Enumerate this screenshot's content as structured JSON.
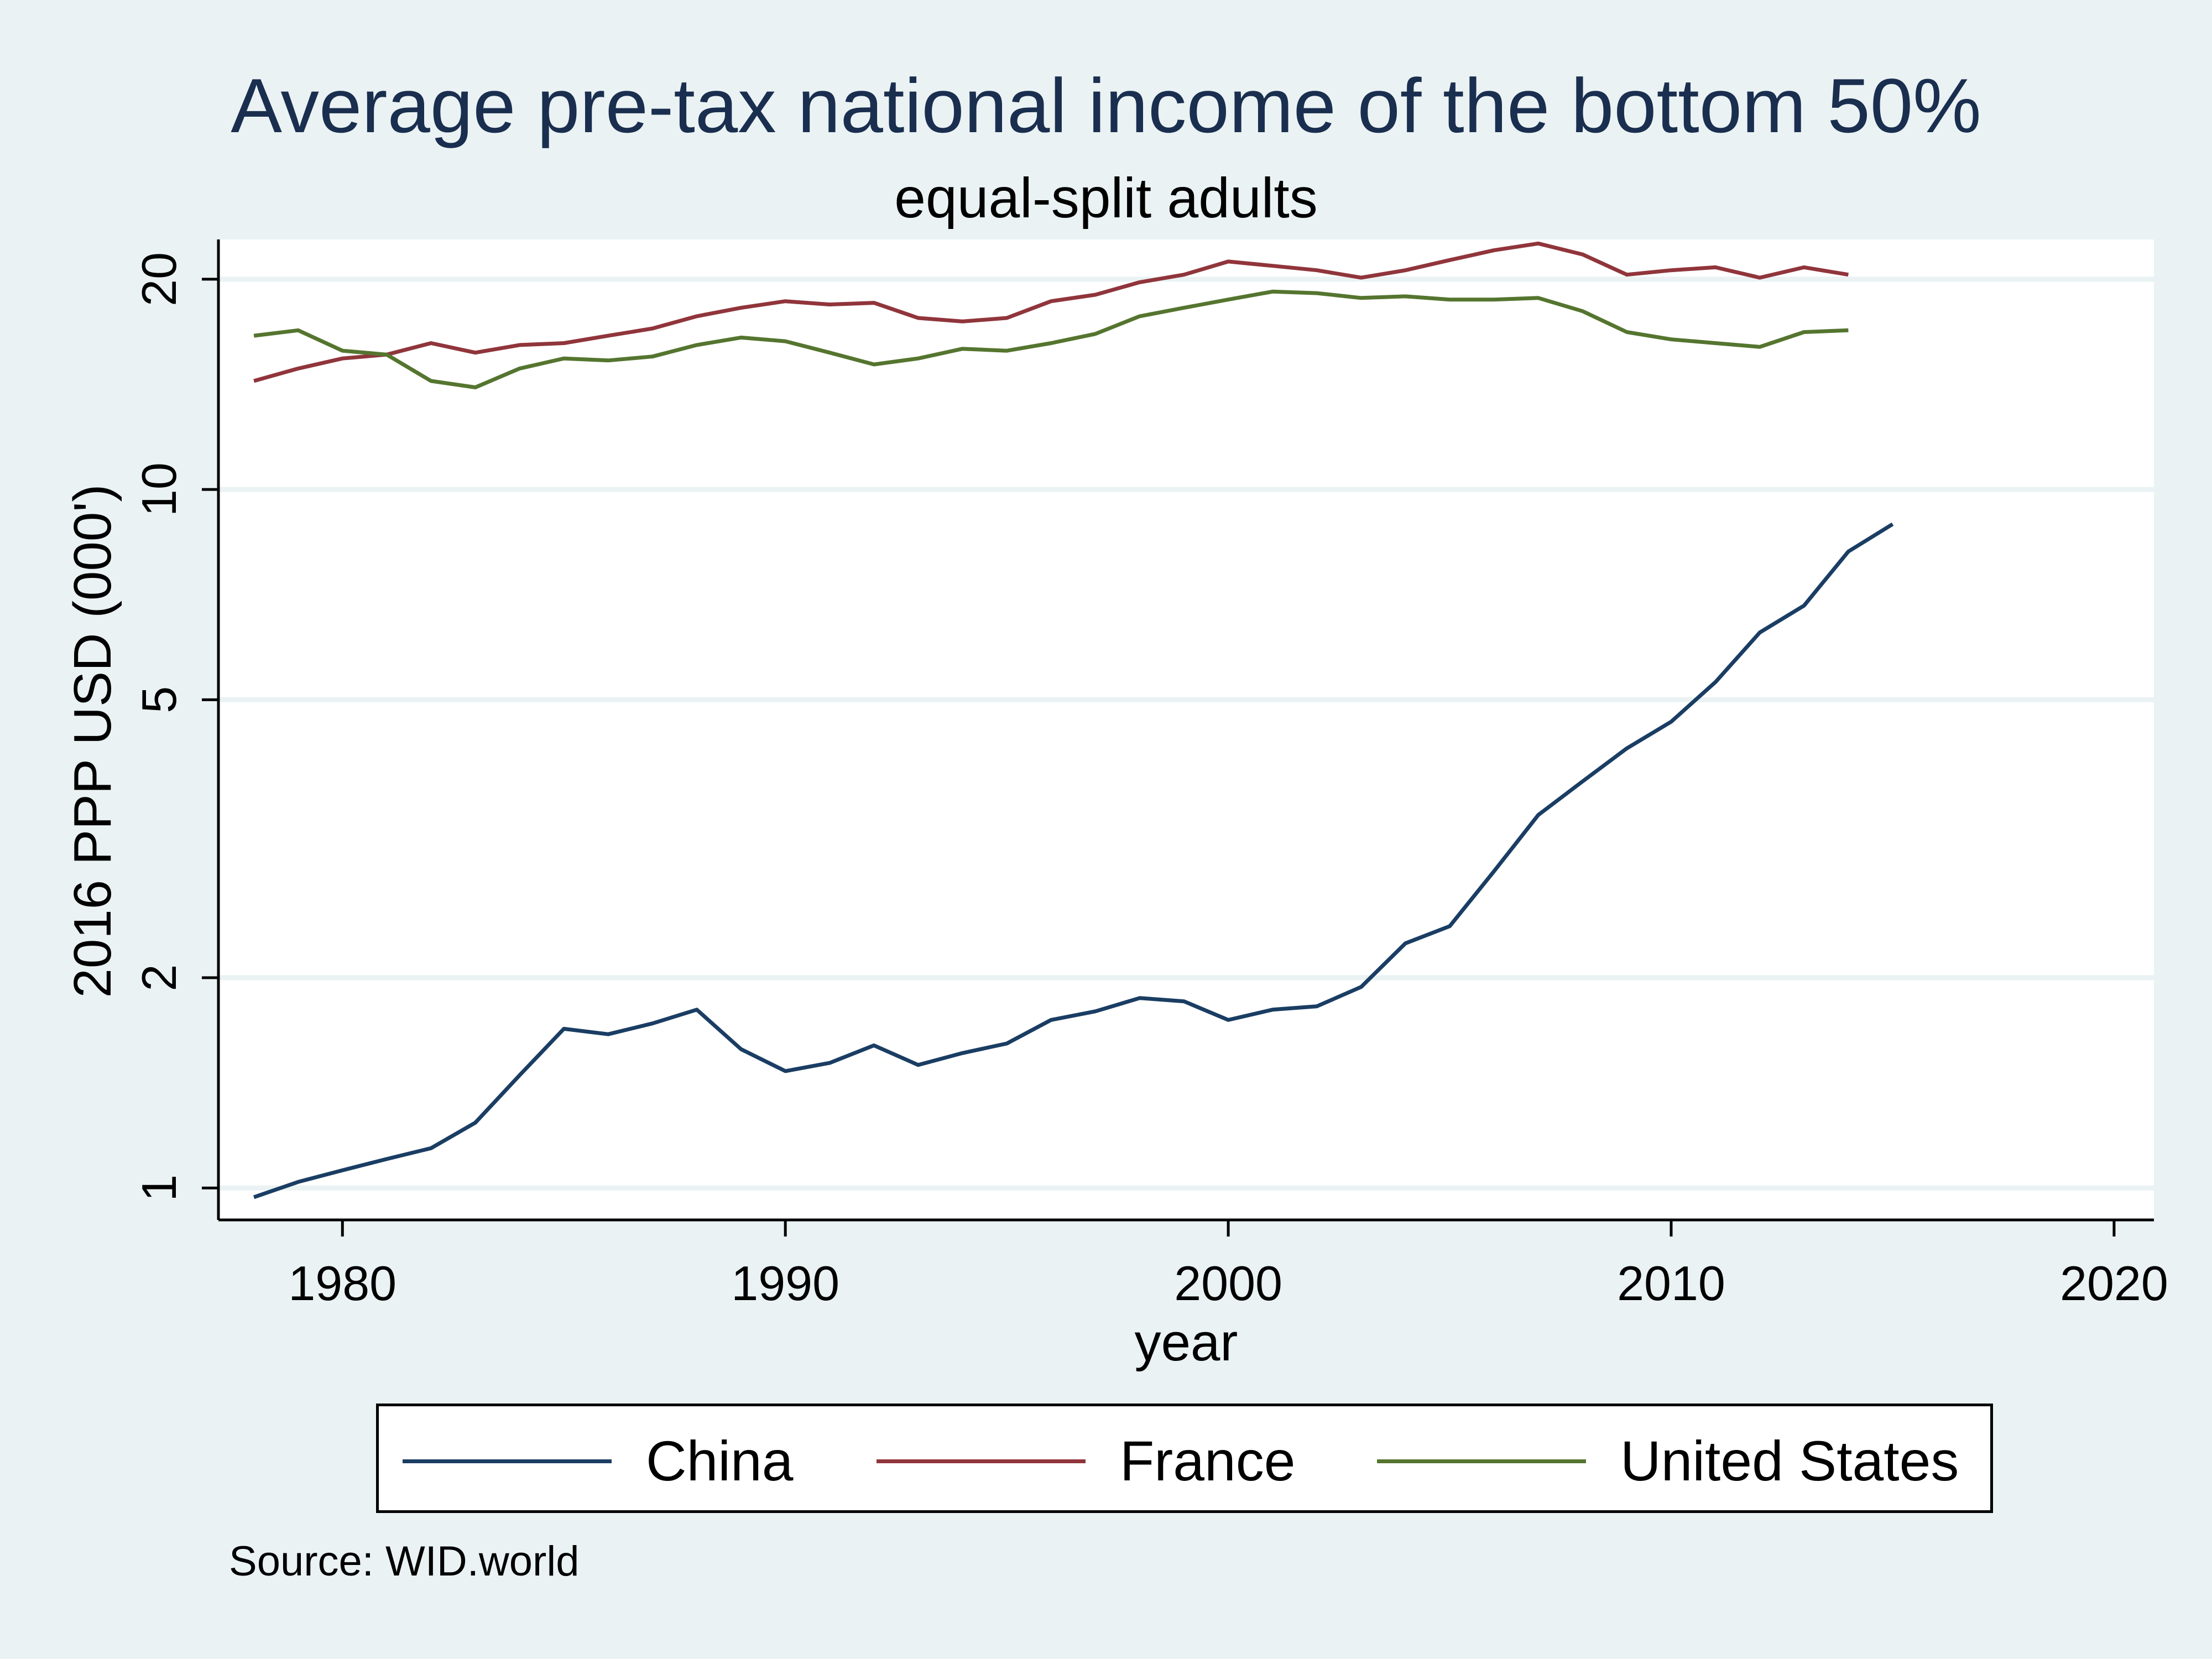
{
  "chart_data": {
    "type": "line",
    "title": "Average pre-tax national income of the bottom 50%",
    "subtitle": "equal-split adults",
    "xlabel": "year",
    "ylabel": "2016 PPP USD (000')",
    "xlim": [
      1977.2,
      2020.9
    ],
    "ylim": [
      0.9,
      22.8
    ],
    "yscale": "log",
    "xticks": [
      1980,
      1990,
      2000,
      2010,
      2020
    ],
    "yticks": [
      1,
      2,
      5,
      10,
      20
    ],
    "grid": "y",
    "legend_position": "bottom",
    "series": [
      {
        "name": "China",
        "color": "#1a3d63",
        "x": [
          1978,
          1979,
          1980,
          1981,
          1982,
          1983,
          1984,
          1985,
          1986,
          1987,
          1988,
          1989,
          1990,
          1991,
          1992,
          1993,
          1994,
          1995,
          1996,
          1997,
          1998,
          1999,
          2000,
          2001,
          2002,
          2003,
          2004,
          2005,
          2006,
          2007,
          2008,
          2009,
          2010,
          2011,
          2012,
          2013,
          2014,
          2015
        ],
        "values": [
          0.97,
          1.02,
          1.06,
          1.1,
          1.14,
          1.24,
          1.45,
          1.69,
          1.66,
          1.72,
          1.8,
          1.58,
          1.47,
          1.51,
          1.6,
          1.5,
          1.56,
          1.61,
          1.74,
          1.79,
          1.87,
          1.85,
          1.74,
          1.8,
          1.82,
          1.94,
          2.24,
          2.37,
          2.84,
          3.42,
          3.82,
          4.26,
          4.65,
          5.3,
          6.24,
          6.82,
          8.15,
          8.92
        ]
      },
      {
        "name": "France",
        "color": "#90353b",
        "x": [
          1978,
          1979,
          1980,
          1981,
          1982,
          1983,
          1984,
          1985,
          1986,
          1987,
          1988,
          1989,
          1990,
          1991,
          1992,
          1993,
          1994,
          1995,
          1996,
          1997,
          1998,
          1999,
          2000,
          2001,
          2002,
          2003,
          2004,
          2005,
          2006,
          2007,
          2008,
          2009,
          2010,
          2011,
          2012,
          2013,
          2014
        ],
        "values": [
          14.3,
          14.9,
          15.4,
          15.6,
          16.2,
          15.7,
          16.1,
          16.2,
          16.6,
          17.0,
          17.7,
          18.2,
          18.6,
          18.4,
          18.5,
          17.6,
          17.4,
          17.6,
          18.6,
          19.0,
          19.8,
          20.3,
          21.2,
          20.9,
          20.6,
          20.1,
          20.6,
          21.3,
          22.0,
          22.5,
          21.7,
          20.3,
          20.6,
          20.8,
          20.1,
          20.8,
          20.3
        ]
      },
      {
        "name": "United States",
        "color": "#55752f",
        "x": [
          1978,
          1979,
          1980,
          1981,
          1982,
          1983,
          1984,
          1985,
          1986,
          1987,
          1988,
          1989,
          1990,
          1991,
          1992,
          1993,
          1994,
          1995,
          1996,
          1997,
          1998,
          1999,
          2000,
          2001,
          2002,
          2003,
          2004,
          2005,
          2006,
          2007,
          2008,
          2009,
          2010,
          2011,
          2012,
          2013,
          2014
        ],
        "values": [
          16.6,
          16.9,
          15.8,
          15.6,
          14.3,
          14.0,
          14.9,
          15.4,
          15.3,
          15.5,
          16.1,
          16.5,
          16.3,
          15.7,
          15.1,
          15.4,
          15.9,
          15.8,
          16.2,
          16.7,
          17.7,
          18.2,
          18.7,
          19.2,
          19.1,
          18.8,
          18.9,
          18.7,
          18.7,
          18.8,
          18.0,
          16.8,
          16.4,
          16.2,
          16.0,
          16.8,
          16.9
        ]
      }
    ],
    "source": "Source: WID.world"
  }
}
